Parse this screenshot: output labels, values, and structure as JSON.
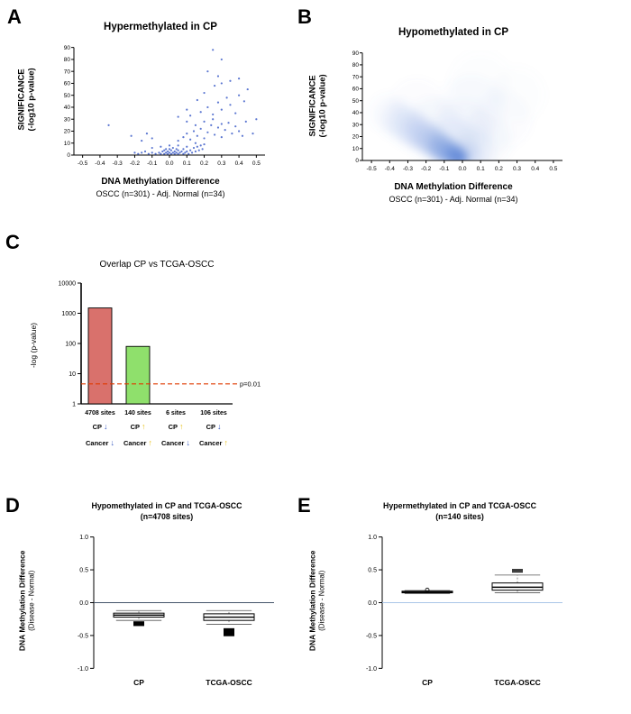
{
  "panels": {
    "a": {
      "letter": "A",
      "title": "Hypermethylated in CP",
      "y_label_line1": "SIGNIFICANCE",
      "y_label_line2": "(-log10 p-value)",
      "x_label": "DNA Methylation Difference",
      "x_sublabel": "OSCC (n=301) - Adj. Normal (n=34)"
    },
    "b": {
      "letter": "B",
      "title": "Hypomethylated in CP",
      "y_label_line1": "SIGNIFICANCE",
      "y_label_line2": "(-log10 p-value)",
      "x_label": "DNA Methylation Difference",
      "x_sublabel": "OSCC (n=301) - Adj. Normal (n=34)"
    },
    "c": {
      "letter": "C",
      "title": "Overlap CP vs TCGA-OSCC",
      "y_label": "-log (p-value)"
    },
    "d": {
      "letter": "D",
      "title_line1": "Hypomethylated in CP and TCGA-OSCC",
      "title_line2": "(n=4708 sites)",
      "y_label_line1": "DNA Methylation Difference",
      "y_label_line2": "(Disease - Normal)"
    },
    "e": {
      "letter": "E",
      "title_line1": "Hypermethylated in CP and TCGA-OSCC",
      "title_line2": "(n=140 sites)",
      "y_label_line1": "DNA Methylation Difference",
      "y_label_line2": "(Disease - Normal)"
    }
  },
  "chart_data": [
    {
      "panel": "A",
      "type": "scatter",
      "title": "Hypermethylated in CP",
      "xlabel": "DNA Methylation Difference",
      "x_sublabel": "OSCC (n=301) - Adj. Normal (n=34)",
      "ylabel": "SIGNIFICANCE (-log10 p-value)",
      "xlim": [
        -0.55,
        0.55
      ],
      "ylim": [
        0,
        92
      ],
      "xticks": [
        -0.5,
        -0.4,
        -0.3,
        -0.2,
        -0.1,
        0.0,
        0.1,
        0.2,
        0.3,
        0.4,
        0.5
      ],
      "yticks": [
        0,
        10,
        20,
        30,
        40,
        50,
        60,
        70,
        80,
        90
      ],
      "point_color": "#3f5fc9",
      "points": [
        [
          -0.08,
          1
        ],
        [
          -0.06,
          2
        ],
        [
          -0.05,
          1
        ],
        [
          -0.04,
          3
        ],
        [
          -0.03,
          1
        ],
        [
          -0.03,
          4
        ],
        [
          -0.02,
          2
        ],
        [
          -0.02,
          5
        ],
        [
          -0.01,
          1
        ],
        [
          -0.01,
          3
        ],
        [
          0,
          2
        ],
        [
          0,
          5
        ],
        [
          0.01,
          1
        ],
        [
          0.01,
          4
        ],
        [
          0.02,
          2
        ],
        [
          0.02,
          6
        ],
        [
          0.03,
          1
        ],
        [
          0.03,
          3
        ],
        [
          0.04,
          2
        ],
        [
          0.04,
          5
        ],
        [
          0.05,
          1
        ],
        [
          0.05,
          4
        ],
        [
          0.06,
          2
        ],
        [
          0.07,
          3
        ],
        [
          0.08,
          1
        ],
        [
          0.08,
          5
        ],
        [
          0.09,
          2
        ],
        [
          0.1,
          3
        ],
        [
          0.11,
          1
        ],
        [
          0.12,
          4
        ],
        [
          0.13,
          2
        ],
        [
          0.14,
          6
        ],
        [
          0.15,
          3
        ],
        [
          0.16,
          7
        ],
        [
          0.17,
          4
        ],
        [
          0.18,
          8
        ],
        [
          0.19,
          5
        ],
        [
          0.2,
          9
        ],
        [
          -0.1,
          2
        ],
        [
          -0.12,
          1
        ],
        [
          -0.14,
          3
        ],
        [
          -0.16,
          2
        ],
        [
          -0.18,
          1
        ],
        [
          -0.2,
          2
        ],
        [
          -0.1,
          6
        ],
        [
          -0.05,
          7
        ],
        [
          0,
          8
        ],
        [
          0.05,
          8
        ],
        [
          0.1,
          7
        ],
        [
          0.15,
          10
        ],
        [
          0.05,
          12
        ],
        [
          0.08,
          15
        ],
        [
          0.1,
          18
        ],
        [
          0.12,
          13
        ],
        [
          0.14,
          20
        ],
        [
          0.16,
          16
        ],
        [
          0.18,
          22
        ],
        [
          0.2,
          14
        ],
        [
          0.22,
          19
        ],
        [
          0.24,
          25
        ],
        [
          0.26,
          17
        ],
        [
          0.28,
          23
        ],
        [
          0.3,
          15
        ],
        [
          0.32,
          21
        ],
        [
          0.34,
          27
        ],
        [
          0.36,
          18
        ],
        [
          0.38,
          24
        ],
        [
          0.4,
          20
        ],
        [
          0.42,
          16
        ],
        [
          0.44,
          28
        ],
        [
          0.2,
          28
        ],
        [
          0.25,
          30
        ],
        [
          0.3,
          26
        ],
        [
          0.15,
          25
        ],
        [
          0.1,
          28
        ],
        [
          -0.1,
          14
        ],
        [
          -0.13,
          18
        ],
        [
          -0.16,
          12
        ],
        [
          -0.22,
          16
        ],
        [
          -0.35,
          25
        ],
        [
          0.48,
          18
        ],
        [
          0.5,
          30
        ],
        [
          0.12,
          33
        ],
        [
          0.18,
          36
        ],
        [
          0.22,
          40
        ],
        [
          0.25,
          34
        ],
        [
          0.28,
          44
        ],
        [
          0.3,
          38
        ],
        [
          0.33,
          48
        ],
        [
          0.35,
          42
        ],
        [
          0.38,
          35
        ],
        [
          0.4,
          50
        ],
        [
          0.43,
          45
        ],
        [
          0.45,
          55
        ],
        [
          0.2,
          52
        ],
        [
          0.26,
          58
        ],
        [
          0.3,
          60
        ],
        [
          0.16,
          46
        ],
        [
          0.1,
          38
        ],
        [
          0.05,
          32
        ],
        [
          0.22,
          70
        ],
        [
          0.25,
          88
        ],
        [
          0.3,
          80
        ],
        [
          0.35,
          62
        ],
        [
          0.28,
          66
        ],
        [
          0.4,
          64
        ]
      ]
    },
    {
      "panel": "B",
      "type": "scatter",
      "style": "density",
      "title": "Hypomethylated in CP",
      "xlabel": "DNA Methylation Difference",
      "x_sublabel": "OSCC (n=301) - Adj. Normal (n=34)",
      "ylabel": "SIGNIFICANCE (-log10 p-value)",
      "xlim": [
        -0.55,
        0.55
      ],
      "ylim": [
        0,
        92
      ],
      "xticks": [
        -0.5,
        -0.4,
        -0.3,
        -0.2,
        -0.1,
        0.0,
        0.1,
        0.2,
        0.3,
        0.4,
        0.5
      ],
      "yticks": [
        0,
        10,
        20,
        30,
        40,
        50,
        60,
        70,
        80,
        90
      ],
      "density_color": "#5b84d6",
      "kernels": [
        {
          "x": -0.005,
          "y": 1.5,
          "r": 7,
          "a": 0.6
        },
        {
          "x": -0.02,
          "y": 2.5,
          "r": 10,
          "a": 0.5
        },
        {
          "x": -0.04,
          "y": 4,
          "r": 12,
          "a": 0.42
        },
        {
          "x": -0.07,
          "y": 6,
          "r": 13,
          "a": 0.35
        },
        {
          "x": -0.1,
          "y": 9,
          "r": 15,
          "a": 0.28
        },
        {
          "x": -0.13,
          "y": 12,
          "r": 16,
          "a": 0.22
        },
        {
          "x": -0.17,
          "y": 16,
          "r": 17,
          "a": 0.17
        },
        {
          "x": -0.21,
          "y": 20,
          "r": 18,
          "a": 0.13
        },
        {
          "x": -0.25,
          "y": 24,
          "r": 19,
          "a": 0.1
        },
        {
          "x": -0.29,
          "y": 28,
          "r": 20,
          "a": 0.08
        },
        {
          "x": -0.33,
          "y": 32,
          "r": 20,
          "a": 0.06
        },
        {
          "x": -0.37,
          "y": 36,
          "r": 20,
          "a": 0.045
        },
        {
          "x": -0.41,
          "y": 40,
          "r": 20,
          "a": 0.03
        },
        {
          "x": 0.02,
          "y": 3,
          "r": 18,
          "a": 0.12
        },
        {
          "x": 0.06,
          "y": 8,
          "r": 24,
          "a": 0.07
        },
        {
          "x": -0.05,
          "y": 15,
          "r": 28,
          "a": 0.07
        },
        {
          "x": 0,
          "y": 25,
          "r": 34,
          "a": 0.045
        },
        {
          "x": 0.12,
          "y": 18,
          "r": 30,
          "a": 0.04
        },
        {
          "x": -0.15,
          "y": 30,
          "r": 30,
          "a": 0.04
        },
        {
          "x": 0.05,
          "y": 45,
          "r": 36,
          "a": 0.03
        },
        {
          "x": 0.22,
          "y": 35,
          "r": 32,
          "a": 0.025
        },
        {
          "x": -0.25,
          "y": 45,
          "r": 30,
          "a": 0.025
        },
        {
          "x": 0.3,
          "y": 55,
          "r": 30,
          "a": 0.02
        },
        {
          "x": 0.1,
          "y": 65,
          "r": 34,
          "a": 0.02
        }
      ]
    },
    {
      "panel": "C",
      "type": "bar",
      "title": "Overlap CP vs TCGA-OSCC",
      "ylabel": "-log (p-value)",
      "yscale": "log",
      "ylim": [
        1,
        10000
      ],
      "yticks": [
        1,
        10,
        100,
        1000,
        10000
      ],
      "categories": [
        "4708 sites",
        "140 sites",
        "6 sites",
        "106 sites"
      ],
      "values": [
        1500,
        80,
        1,
        1
      ],
      "bar_colors": [
        "#d9716c",
        "#8fe06c",
        "#d9716c",
        "#8fe06c"
      ],
      "threshold": {
        "value": 4.6,
        "label": "p=0.01",
        "color": "#e03a00"
      },
      "arrow_glyphs": {
        "up": "↑",
        "down": "↓"
      },
      "arrow_colors": {
        "up": "#e8c21c",
        "down": "#3a5bc0"
      },
      "groups": [
        {
          "line1": "CP",
          "arrow1": "down",
          "line2": "Cancer",
          "arrow2": "down"
        },
        {
          "line1": "CP",
          "arrow1": "up",
          "line2": "Cancer",
          "arrow2": "up"
        },
        {
          "line1": "CP",
          "arrow1": "up",
          "line2": "Cancer",
          "arrow2": "down"
        },
        {
          "line1": "CP",
          "arrow1": "down",
          "line2": "Cancer",
          "arrow2": "up"
        }
      ]
    },
    {
      "panel": "D",
      "type": "box",
      "title": "Hypomethylated in CP and TCGA-OSCC (n=4708 sites)",
      "ylabel": "DNA Methylation Difference (Disease - Normal)",
      "ylim": [
        -1.05,
        1.05
      ],
      "yticks": [
        1.0,
        0.5,
        0.0,
        -0.5,
        -1.0
      ],
      "ytick_labels": [
        "1.0",
        "0.5",
        "0.0",
        "-0.5",
        "-1.0"
      ],
      "zero_line_color": "#44546a",
      "categories": [
        "CP",
        "TCGA-OSCC"
      ],
      "boxes": [
        {
          "label": "CP",
          "q1": -0.22,
          "median": -0.19,
          "q3": -0.16,
          "whisker_low": -0.27,
          "whisker_high": -0.12,
          "outliers": [
            -0.295,
            -0.305,
            -0.315,
            -0.325,
            -0.335,
            -0.345
          ],
          "outlier_style": "dash"
        },
        {
          "label": "TCGA-OSCC",
          "q1": -0.27,
          "median": -0.22,
          "q3": -0.17,
          "whisker_low": -0.33,
          "whisker_high": -0.12,
          "outliers": [
            -0.4,
            -0.41,
            -0.42,
            -0.43,
            -0.44,
            -0.45,
            -0.46,
            -0.47,
            -0.48,
            -0.49,
            -0.5
          ],
          "outlier_style": "dash"
        }
      ]
    },
    {
      "panel": "E",
      "type": "box",
      "title": "Hypermethylated in CP and TCGA-OSCC (n=140 sites)",
      "ylabel": "DNA Methylation Difference (Disease - Normal)",
      "ylim": [
        -1.05,
        1.05
      ],
      "yticks": [
        1.0,
        0.5,
        0.0,
        -0.5,
        -1.0
      ],
      "ytick_labels": [
        "1.0",
        "0.5",
        "0.0",
        "-0.5",
        "-1.0"
      ],
      "zero_line_color": "#a9c6e8",
      "categories": [
        "CP",
        "TCGA-OSCC"
      ],
      "boxes": [
        {
          "label": "CP",
          "q1": 0.15,
          "median": 0.16,
          "q3": 0.175,
          "whisker_low": 0.14,
          "whisker_high": 0.185,
          "outliers": [
            0.195
          ],
          "outlier_style": "circle"
        },
        {
          "label": "TCGA-OSCC",
          "q1": 0.19,
          "median": 0.235,
          "q3": 0.3,
          "whisker_low": 0.15,
          "whisker_high": 0.42,
          "outliers": [
            0.47,
            0.5
          ],
          "outlier_style": "dash"
        }
      ]
    }
  ]
}
